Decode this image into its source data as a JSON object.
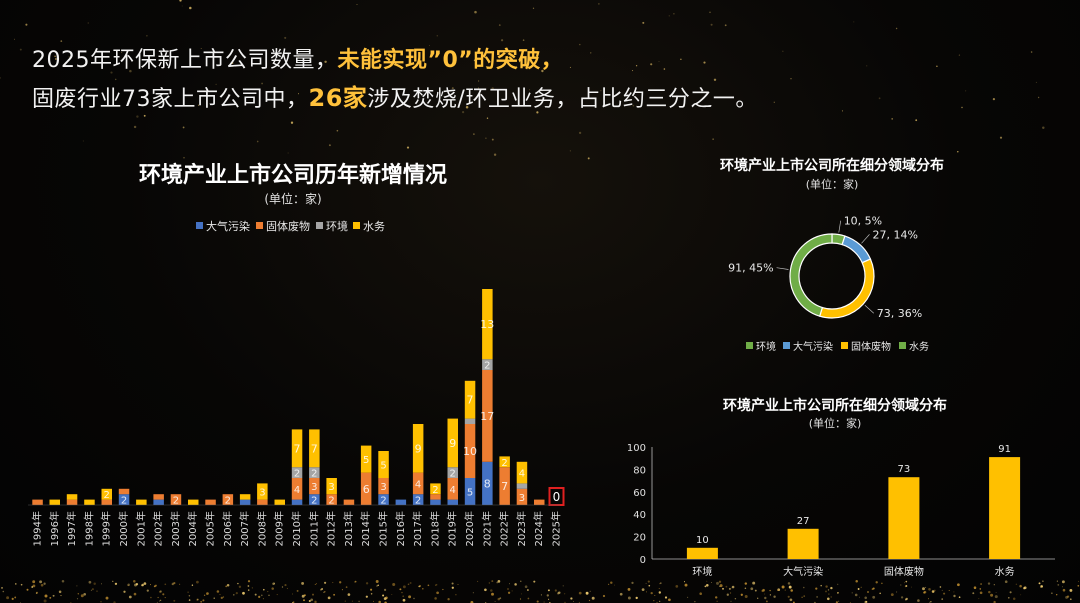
{
  "headline": {
    "line1_prefix": "2025年环保新上市公司数量，",
    "line1_highlight": "未能实现”0”的突破，",
    "line2_prefix": "固废行业73家上市公司中，",
    "line2_highlight": "26家",
    "line2_suffix": "涉及焚烧/环卫业务，占比约三分之一。"
  },
  "colors": {
    "air": "#4472c4",
    "solid": "#ed7d31",
    "env": "#a5a5a5",
    "water": "#ffc000",
    "donut_env": "#70ad47",
    "donut_air": "#5b9bd5",
    "donut_solid": "#ffc000",
    "donut_water": "#70ad47",
    "bar": "#ffc000",
    "highlight_box": "#e02020"
  },
  "chart_data": [
    {
      "type": "bar",
      "stacked": true,
      "title": "环境产业上市公司历年新增情况",
      "subtitle": "(单位：家)",
      "legend": [
        "大气污染",
        "固体废物",
        "环境",
        "水务"
      ],
      "legend_position": "top-center",
      "categories": [
        "1994年",
        "1996年",
        "1997年",
        "1998年",
        "1999年",
        "2000年",
        "2001年",
        "2002年",
        "2003年",
        "2004年",
        "2005年",
        "2006年",
        "2007年",
        "2008年",
        "2009年",
        "2010年",
        "2011年",
        "2012年",
        "2013年",
        "2014年",
        "2015年",
        "2016年",
        "2017年",
        "2018年",
        "2019年",
        "2020年",
        "2021年",
        "2022年",
        "2023年",
        "2024年",
        "2025年"
      ],
      "series": [
        {
          "name": "大气污染",
          "values": [
            0,
            0,
            0,
            0,
            0,
            2,
            0,
            1,
            0,
            0,
            0,
            0,
            1,
            0,
            0,
            1,
            2,
            0,
            0,
            0,
            2,
            1,
            2,
            1,
            1,
            5,
            8,
            0,
            0,
            0,
            0
          ]
        },
        {
          "name": "固体废物",
          "values": [
            1,
            0,
            1,
            0,
            1,
            1,
            0,
            1,
            2,
            0,
            1,
            2,
            0,
            1,
            0,
            4,
            3,
            2,
            1,
            6,
            3,
            0,
            4,
            1,
            4,
            10,
            17,
            7,
            3,
            1,
            0
          ]
        },
        {
          "name": "环境",
          "values": [
            0,
            0,
            0,
            0,
            0,
            0,
            0,
            0,
            0,
            0,
            0,
            0,
            0,
            0,
            0,
            2,
            2,
            0,
            0,
            0,
            0,
            0,
            0,
            0,
            2,
            1,
            2,
            0,
            1,
            0,
            0
          ]
        },
        {
          "name": "水务",
          "values": [
            0,
            1,
            1,
            1,
            2,
            0,
            1,
            0,
            0,
            1,
            0,
            0,
            1,
            3,
            1,
            7,
            7,
            3,
            0,
            5,
            5,
            0,
            9,
            2,
            9,
            7,
            13,
            2,
            4,
            0,
            0
          ]
        }
      ],
      "highlight_category": "2025年",
      "highlight_label": "0"
    },
    {
      "type": "pie",
      "style": "donut",
      "title": "环境产业上市公司所在细分领域分布",
      "subtitle": "(单位：家)",
      "slices": [
        {
          "name": "环境",
          "value": 10,
          "label": "10, 5%"
        },
        {
          "name": "大气污染",
          "value": 27,
          "label": "27, 14%"
        },
        {
          "name": "固体废物",
          "value": 73,
          "label": "73, 36%"
        },
        {
          "name": "水务",
          "value": 91,
          "label": "91, 45%"
        }
      ],
      "legend": [
        "环境",
        "大气污染",
        "固体废物",
        "水务"
      ],
      "legend_position": "bottom"
    },
    {
      "type": "bar",
      "title": "环境产业上市公司所在细分领域分布",
      "subtitle": "(单位：家)",
      "categories": [
        "环境",
        "大气污染",
        "固体废物",
        "水务"
      ],
      "values": [
        10,
        27,
        73,
        91
      ],
      "ylim": [
        0,
        100
      ],
      "yticks": [
        "0",
        "20",
        "40",
        "60",
        "80",
        "100"
      ]
    }
  ]
}
